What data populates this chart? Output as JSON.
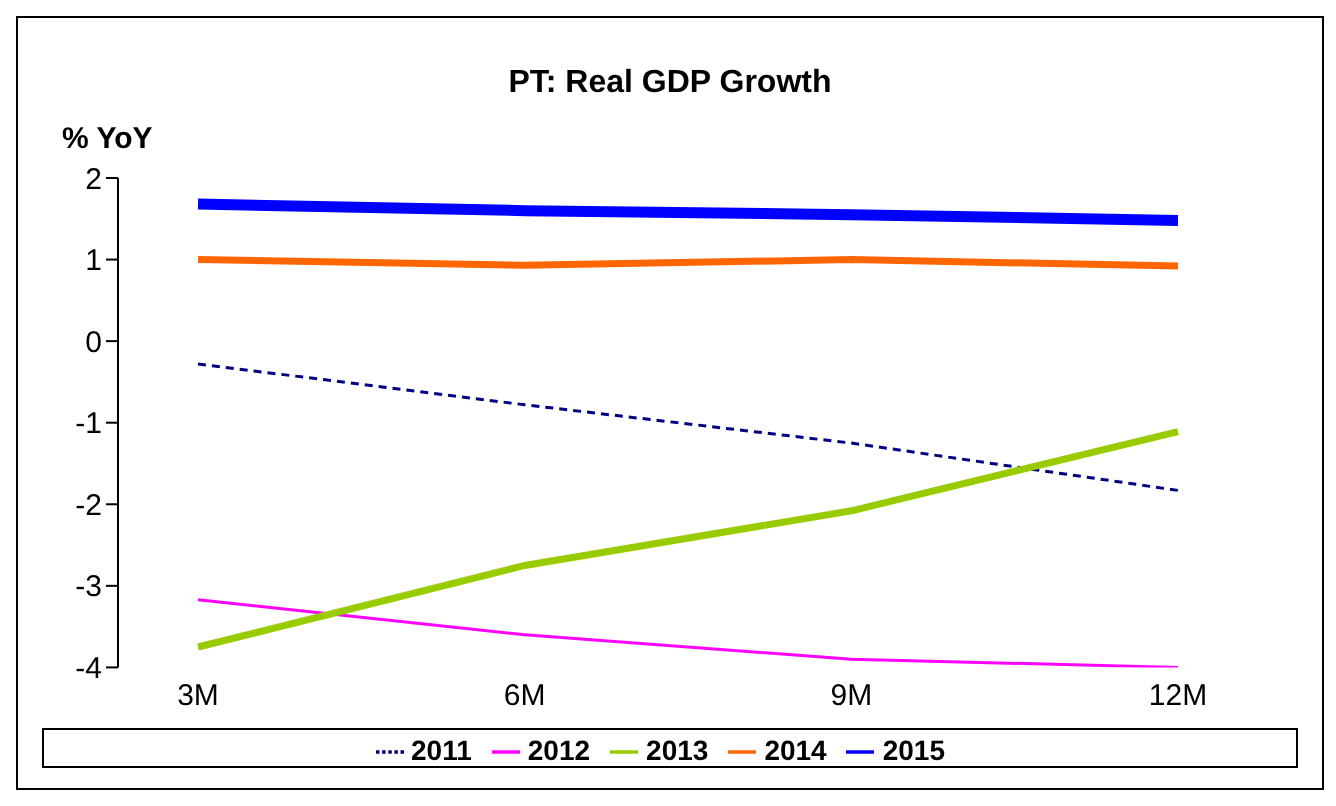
{
  "chart_data": {
    "type": "line",
    "title": "PT: Real GDP Growth",
    "ylabel": "% YoY",
    "categories": [
      "3M",
      "6M",
      "9M",
      "12M"
    ],
    "series": [
      {
        "name": "2011",
        "color": "#000080",
        "line_style": "dashed",
        "values": [
          -0.28,
          -0.78,
          -1.25,
          -1.83
        ]
      },
      {
        "name": "2012",
        "color": "#ff00ff",
        "values": [
          -3.17,
          -3.6,
          -3.9,
          -4.0
        ]
      },
      {
        "name": "2013",
        "color": "#99cc00",
        "values": [
          -3.75,
          -2.75,
          -2.08,
          -1.11
        ]
      },
      {
        "name": "2014",
        "color": "#ff6600",
        "values": [
          1.0,
          0.93,
          1.0,
          0.92
        ]
      },
      {
        "name": "2015",
        "color": "#0000ff",
        "values": [
          1.68,
          1.6,
          1.55,
          1.48
        ]
      }
    ],
    "ylim": [
      -4,
      2
    ],
    "yticks": [
      -4,
      -3,
      -2,
      -1,
      0,
      1,
      2
    ],
    "grid": false,
    "legend": "bottom"
  }
}
